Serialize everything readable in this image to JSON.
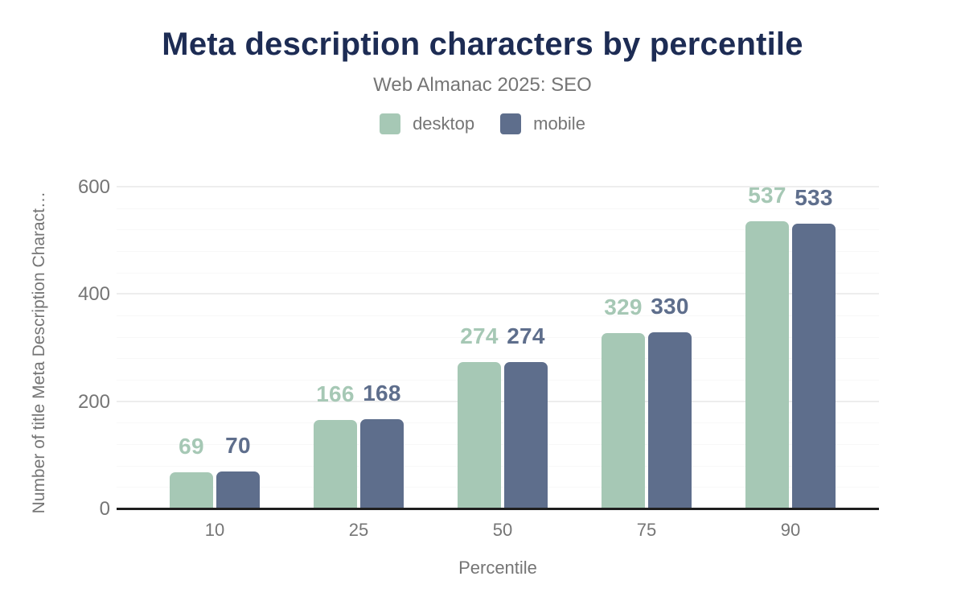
{
  "chart_data": {
    "type": "bar",
    "title": "Meta description characters by percentile",
    "subtitle": "Web Almanac 2025: SEO",
    "categories": [
      "10",
      "25",
      "50",
      "75",
      "90"
    ],
    "series": [
      {
        "name": "desktop",
        "color": "#a6c8b5",
        "values": [
          69,
          166,
          274,
          329,
          537
        ]
      },
      {
        "name": "mobile",
        "color": "#5e6e8c",
        "values": [
          70,
          168,
          274,
          330,
          533
        ]
      }
    ],
    "xlabel": "Percentile",
    "ylabel": "Number of title Meta Description Charact…",
    "ylim": [
      0,
      600
    ],
    "yticks": [
      0,
      200,
      400,
      600
    ],
    "minor_grid_step": 40,
    "grid": "horizontal",
    "legend_position": "top",
    "data_labels": true,
    "colors": {
      "title": "#1d2c54",
      "text": "#757575",
      "axis_line": "#1f1f1f",
      "major_grid": "#ededed",
      "minor_grid": "#f8f8f8",
      "background": "#ffffff"
    }
  }
}
